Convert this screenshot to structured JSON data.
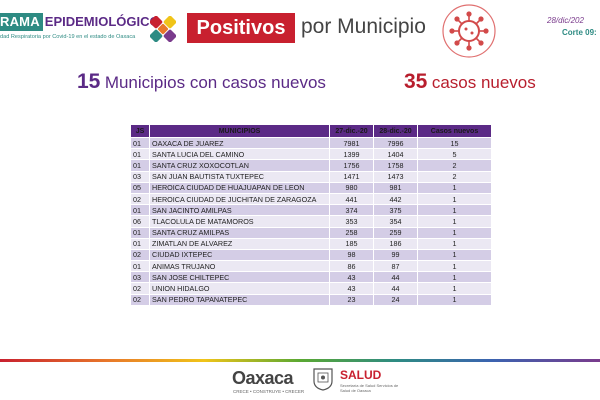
{
  "header": {
    "brand_highlight": "RAMA",
    "brand_rest": "EPIDEMIOLÓGICO",
    "brand_subtitle": "dad Respiratoria por Covid-19 en el estado de Oaxaca",
    "positivos_label": "Positivos",
    "por_municipio": "por Municipio",
    "date": "28/dic/202",
    "corte": "Corte 09:"
  },
  "summary": {
    "municipios_count": "15",
    "municipios_text": "Municipios con casos nuevos",
    "casos_count": "35",
    "casos_text": "casos nuevos"
  },
  "table": {
    "headers": [
      "JS",
      "MUNICIPIOS",
      "27-dic.-20",
      "28-dic.-20",
      "Casos nuevos"
    ],
    "rows": [
      [
        "01",
        "OAXACA DE JUAREZ",
        "7981",
        "7996",
        "15"
      ],
      [
        "01",
        "SANTA LUCIA DEL CAMINO",
        "1399",
        "1404",
        "5"
      ],
      [
        "01",
        "SANTA CRUZ XOXOCOTLAN",
        "1756",
        "1758",
        "2"
      ],
      [
        "03",
        "SAN JUAN BAUTISTA TUXTEPEC",
        "1471",
        "1473",
        "2"
      ],
      [
        "05",
        "HEROICA CIUDAD DE HUAJUAPAN DE LEON",
        "980",
        "981",
        "1"
      ],
      [
        "02",
        "HEROICA CIUDAD DE JUCHITAN DE ZARAGOZA",
        "441",
        "442",
        "1"
      ],
      [
        "01",
        "SAN JACINTO AMILPAS",
        "374",
        "375",
        "1"
      ],
      [
        "06",
        "TLACOLULA DE MATAMOROS",
        "353",
        "354",
        "1"
      ],
      [
        "01",
        "SANTA CRUZ AMILPAS",
        "258",
        "259",
        "1"
      ],
      [
        "01",
        "ZIMATLAN DE ALVAREZ",
        "185",
        "186",
        "1"
      ],
      [
        "02",
        "CIUDAD IXTEPEC",
        "98",
        "99",
        "1"
      ],
      [
        "01",
        "ANIMAS TRUJANO",
        "86",
        "87",
        "1"
      ],
      [
        "03",
        "SAN JOSE CHILTEPEC",
        "43",
        "44",
        "1"
      ],
      [
        "02",
        "UNION HIDALGO",
        "43",
        "44",
        "1"
      ],
      [
        "02",
        "SAN PEDRO TAPANATEPEC",
        "23",
        "24",
        "1"
      ]
    ]
  },
  "footer": {
    "oaxaca": "Oaxaca",
    "oaxaca_slogan": "CRECE • CONSTRUYE • CRECER",
    "salud": "SALUD",
    "salud_sub": "Secretaría de Salud Servicios de Salud de Oaxaca"
  },
  "icons": {
    "logo": "colored-x-logo-icon",
    "virus": "virus-icon",
    "seal": "state-seal-icon"
  },
  "colors": {
    "purple": "#5b2a86",
    "red": "#c8202f",
    "teal": "#2e8b83"
  }
}
